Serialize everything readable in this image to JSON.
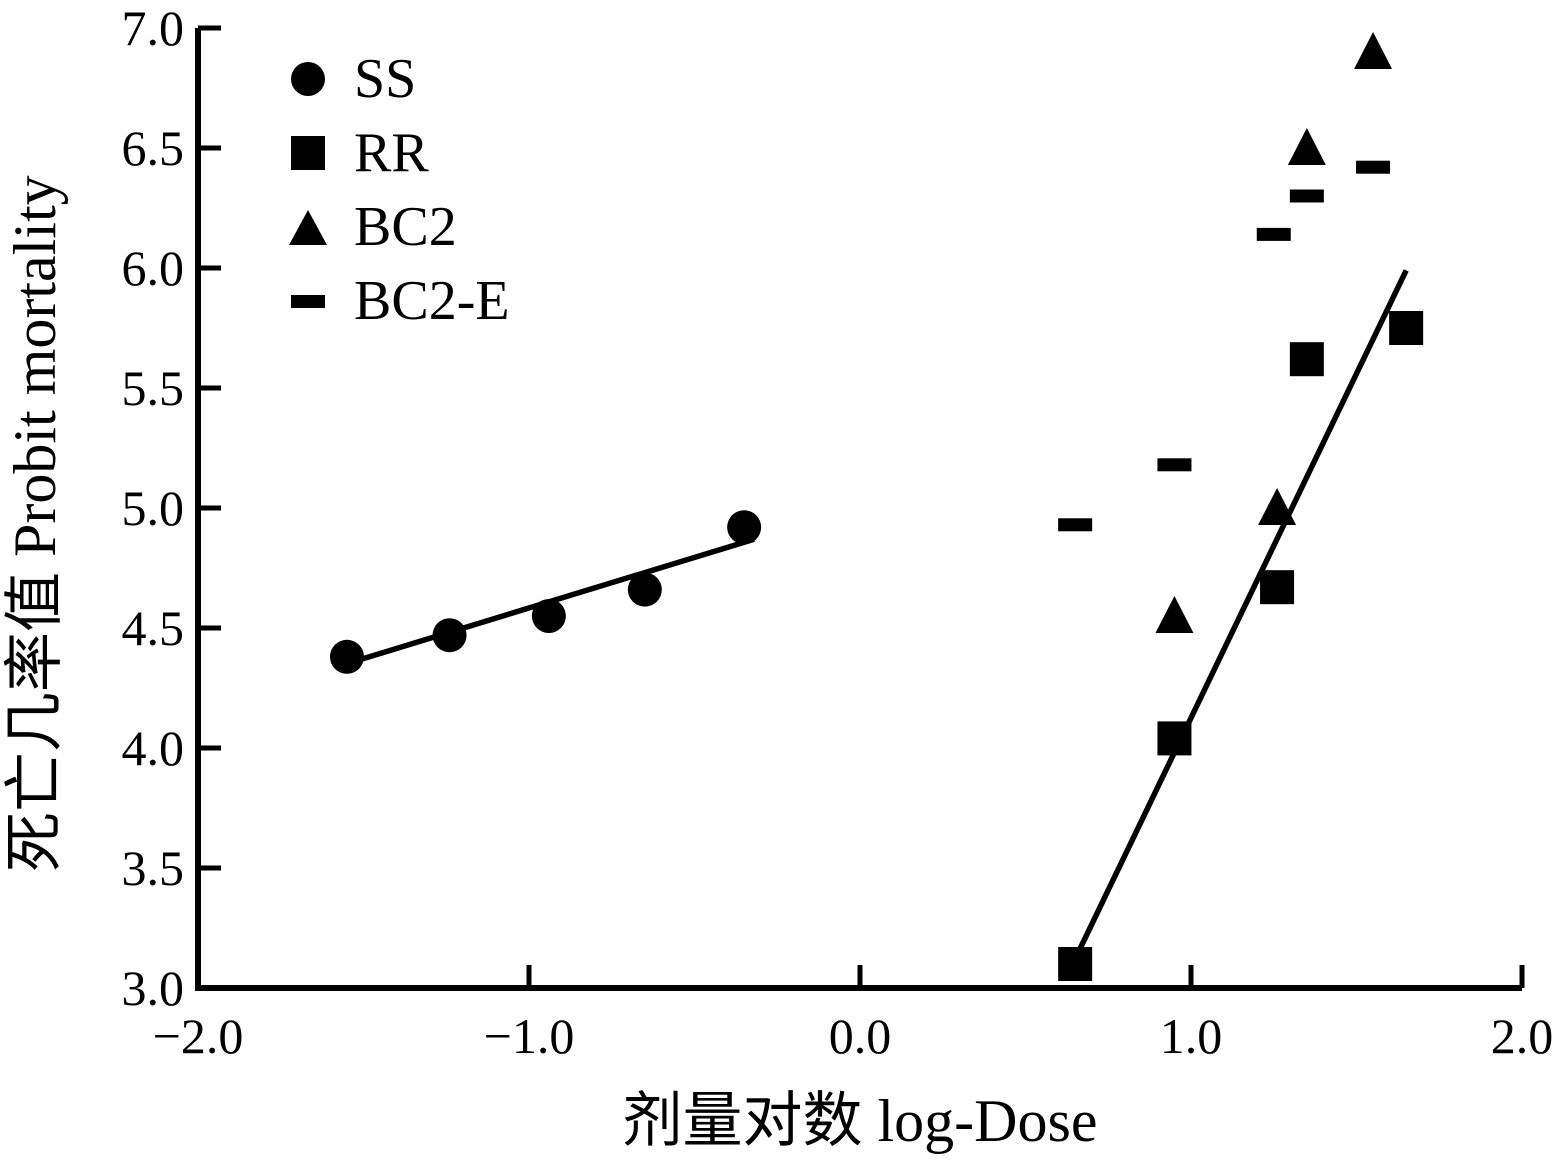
{
  "figure": {
    "background": "#ffffff",
    "ink_color": "#000000"
  },
  "chart_data": {
    "type": "scatter",
    "title": "",
    "xlabel": "剂量对数 log-Dose",
    "ylabel": "死亡几率值  Probit mortality",
    "xlim": [
      -2.0,
      2.0
    ],
    "ylim": [
      3.0,
      7.0
    ],
    "grid": false,
    "legend_position": "upper-left-inside",
    "x_ticks": {
      "values": [
        -2.0,
        -1.0,
        0.0,
        1.0,
        2.0
      ],
      "labels": [
        "−2.0",
        "−1.0",
        "0.0",
        "1.0",
        "2.0"
      ]
    },
    "y_ticks": {
      "values": [
        3.0,
        3.5,
        4.0,
        4.5,
        5.0,
        5.5,
        6.0,
        6.5,
        7.0
      ],
      "labels": [
        "3.0",
        "3.5",
        "4.0",
        "4.5",
        "5.0",
        "5.5",
        "6.0",
        "6.5",
        "7.0"
      ]
    },
    "series": [
      {
        "name": "SS",
        "marker": "circle",
        "points": [
          [
            -1.55,
            4.38
          ],
          [
            -1.24,
            4.47
          ],
          [
            -0.94,
            4.55
          ],
          [
            -0.65,
            4.66
          ],
          [
            -0.35,
            4.92
          ]
        ],
        "fit_line": {
          "from": [
            -1.53,
            4.36
          ],
          "to": [
            -0.32,
            4.87
          ]
        }
      },
      {
        "name": "RR",
        "marker": "square",
        "points": [
          [
            0.65,
            3.1
          ],
          [
            0.95,
            4.04
          ],
          [
            1.26,
            4.67
          ],
          [
            1.35,
            5.62
          ],
          [
            1.65,
            5.75
          ]
        ],
        "fit_line": {
          "from": [
            0.66,
            3.15
          ],
          "to": [
            1.65,
            5.99
          ]
        }
      },
      {
        "name": "BC2",
        "marker": "triangle",
        "points": [
          [
            0.95,
            4.55
          ],
          [
            1.26,
            5.0
          ],
          [
            1.35,
            6.5
          ],
          [
            1.55,
            6.9
          ]
        ],
        "fit_line": null
      },
      {
        "name": "BC2-E",
        "marker": "dash",
        "points": [
          [
            0.65,
            4.93
          ],
          [
            0.95,
            5.18
          ],
          [
            1.25,
            6.14
          ],
          [
            1.35,
            6.3
          ],
          [
            1.55,
            6.42
          ]
        ],
        "fit_line": null
      }
    ]
  },
  "legend": {
    "entries": [
      {
        "label": "SS",
        "marker": "circle"
      },
      {
        "label": "RR",
        "marker": "square"
      },
      {
        "label": "BC2",
        "marker": "triangle"
      },
      {
        "label": "BC2-E",
        "marker": "dash"
      }
    ]
  }
}
